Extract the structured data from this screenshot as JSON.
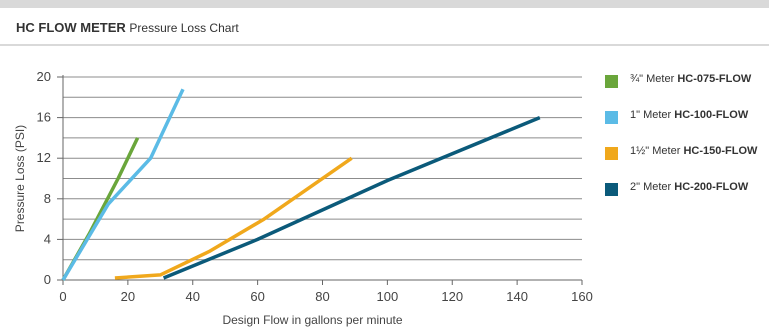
{
  "header": {
    "title_bold": "HC FLOW METER",
    "title_rest": "Pressure Loss Chart"
  },
  "chart_data": {
    "type": "line",
    "xlabel": "Design Flow in gallons per minute",
    "ylabel": "Pressure Loss (PSI)",
    "xlim": [
      0,
      160
    ],
    "ylim": [
      0,
      20
    ],
    "xticks": [
      0,
      20,
      40,
      60,
      80,
      100,
      120,
      140,
      160
    ],
    "yticks": [
      0,
      4,
      8,
      12,
      16,
      20
    ],
    "grid": "horizontal",
    "legend_position": "right",
    "series": [
      {
        "name_prefix": "¾\" Meter",
        "name_model": "HC-075-FLOW",
        "color": "#6aa63b",
        "points": [
          [
            0,
            0
          ],
          [
            8,
            4.5
          ],
          [
            17,
            10
          ],
          [
            23,
            14
          ]
        ]
      },
      {
        "name_prefix": "1\" Meter",
        "name_model": "HC-100-FLOW",
        "color": "#5bbbe6",
        "points": [
          [
            0,
            0
          ],
          [
            14,
            7.5
          ],
          [
            27,
            12
          ],
          [
            37,
            18.8
          ]
        ]
      },
      {
        "name_prefix": "1½\" Meter",
        "name_model": "HC-150-FLOW",
        "color": "#f0a81c",
        "points": [
          [
            16,
            0.2
          ],
          [
            30,
            0.5
          ],
          [
            45,
            2.8
          ],
          [
            62,
            6
          ],
          [
            89,
            12
          ]
        ]
      },
      {
        "name_prefix": "2\" Meter",
        "name_model": "HC-200-FLOW",
        "color": "#0b5a7a",
        "points": [
          [
            31,
            0.2
          ],
          [
            60,
            4
          ],
          [
            100,
            9.8
          ],
          [
            147,
            16
          ]
        ]
      }
    ]
  }
}
